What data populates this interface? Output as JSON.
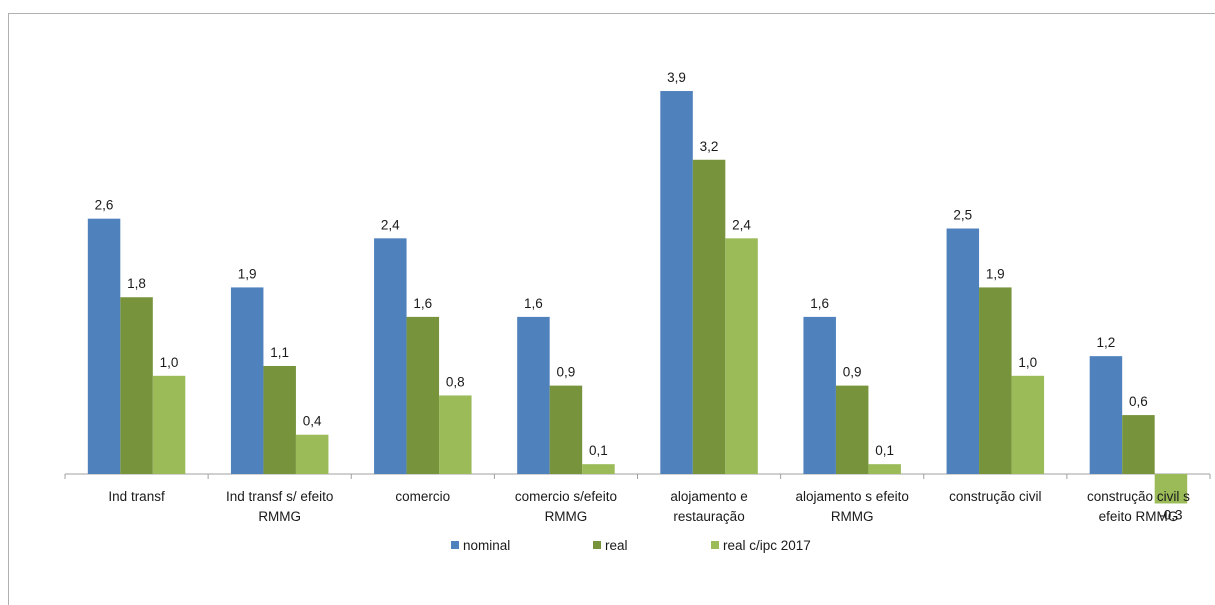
{
  "chart_data": {
    "type": "bar",
    "categories": [
      [
        "Ind transf"
      ],
      [
        "Ind transf s/ efeito",
        "RMMG"
      ],
      [
        "comercio"
      ],
      [
        "comercio s/efeito",
        "RMMG"
      ],
      [
        "alojamento e",
        "restauração"
      ],
      [
        "alojamento s efeito",
        "RMMG"
      ],
      [
        "construção civil"
      ],
      [
        "construção civil s",
        "efeito RMMG"
      ]
    ],
    "series": [
      {
        "name": "nominal",
        "color": "#4F81BD",
        "values": [
          2.6,
          1.9,
          2.4,
          1.6,
          3.9,
          1.6,
          2.5,
          1.2
        ],
        "labels": [
          "2,6",
          "1,9",
          "2,4",
          "1,6",
          "3,9",
          "1,6",
          "2,5",
          "1,2"
        ]
      },
      {
        "name": "real",
        "color": "#77933C",
        "values": [
          1.8,
          1.1,
          1.6,
          0.9,
          3.2,
          0.9,
          1.9,
          0.6
        ],
        "labels": [
          "1,8",
          "1,1",
          "1,6",
          "0,9",
          "3,2",
          "0,9",
          "1,9",
          "0,6"
        ]
      },
      {
        "name": "real c/ipc 2017",
        "color": "#9BBB59",
        "values": [
          1.0,
          0.4,
          0.8,
          0.1,
          2.4,
          0.1,
          1.0,
          -0.3
        ],
        "labels": [
          "1,0",
          "0,4",
          "0,8",
          "0,1",
          "2,4",
          "0,1",
          "1,0",
          "-0,3"
        ]
      }
    ],
    "legend_position": "bottom",
    "grid": false,
    "axis_line_color": "#a0a0a0"
  }
}
